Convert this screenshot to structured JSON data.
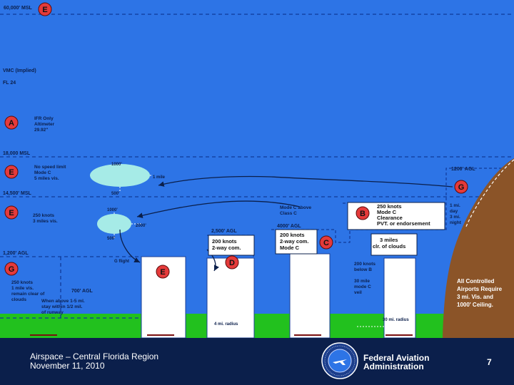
{
  "colors": {
    "sky": "#2d74e6",
    "ground": "#22c11e",
    "terrain": "#8b5428",
    "footer_bg": "#0b1f4b",
    "class_badge": "#e53a3a",
    "cloud": "#a6ebe7",
    "tower": "#ffffff"
  },
  "altitude_labels": {
    "msl_60000": "60,000' MSL",
    "vmc": "VMC (Implied)",
    "fl24": "FL 24",
    "msl_18000": "18,000 MSL",
    "msl_14500": "14,500' MSL",
    "agl_1200": "1,200' AGL",
    "agl_2500": "2,500' AGL",
    "agl_4000": "4000' AGL",
    "agl_1200_r": "1200' AGL",
    "agl_700": "700' AGL"
  },
  "class_badges": {
    "e_top": "E",
    "a": "A",
    "e_mid": "E",
    "e_low": "E",
    "g_left": "G",
    "g_right": "G",
    "b": "B",
    "c": "C",
    "d": "D",
    "e_tower": "E"
  },
  "notes": {
    "ifr_only": [
      "IFR Only",
      "Altimeter",
      "29.92\""
    ],
    "no_speed_limit": [
      "No speed limit",
      "Mode C",
      "5 miles vis."
    ],
    "e_250": [
      "250 knots",
      "3 miles vis."
    ],
    "g_left": [
      "250 knots",
      "1 mile vis.",
      "remain clear of",
      "clouds"
    ],
    "night": [
      "When above 1-5 ml.",
      "stay within 1/2 mil.",
      "of runway"
    ],
    "mode_c_above": [
      "Mode C above",
      "Class C"
    ],
    "class_b": [
      "250 knots",
      "Mode C",
      "Clearance",
      "PVT. or endorsement"
    ],
    "class_c": [
      "200 knots",
      "2-way com.",
      "Mode C"
    ],
    "class_d": [
      "200 knots",
      "2-way com."
    ],
    "b_clouds": [
      "3 miles",
      "clr. of clouds"
    ],
    "b_200": [
      "200 knots",
      "below B"
    ],
    "b_30": [
      "30 mile",
      "mode C",
      "veil"
    ],
    "vis_right": [
      "1 mi.",
      "day",
      "3 mi.",
      "night"
    ],
    "controlled_airports": [
      "All Controlled",
      "Airports Require",
      "3 mi. Vis. and",
      "1000' Ceiling."
    ]
  },
  "misc_labels": {
    "cloud_1000": "1000'",
    "cloud_1mile": "1 mile",
    "cloud_500": "500'",
    "cloud2_1000": "1000'",
    "cloud2_2000": "2000'",
    "cloud2_500": "500'",
    "g_flight": "G flight",
    "radius_4mi": "4 mi. radius",
    "radius_30mi": "30 mi. radius"
  },
  "footer": {
    "title": "Airspace – Central Florida Region",
    "date": "November 11, 2010",
    "agency_line1": "Federal Aviation",
    "agency_line2": "Administration",
    "page_number": "7",
    "seal_text": "FEDERAL AVIATION ADMINISTRATION"
  }
}
